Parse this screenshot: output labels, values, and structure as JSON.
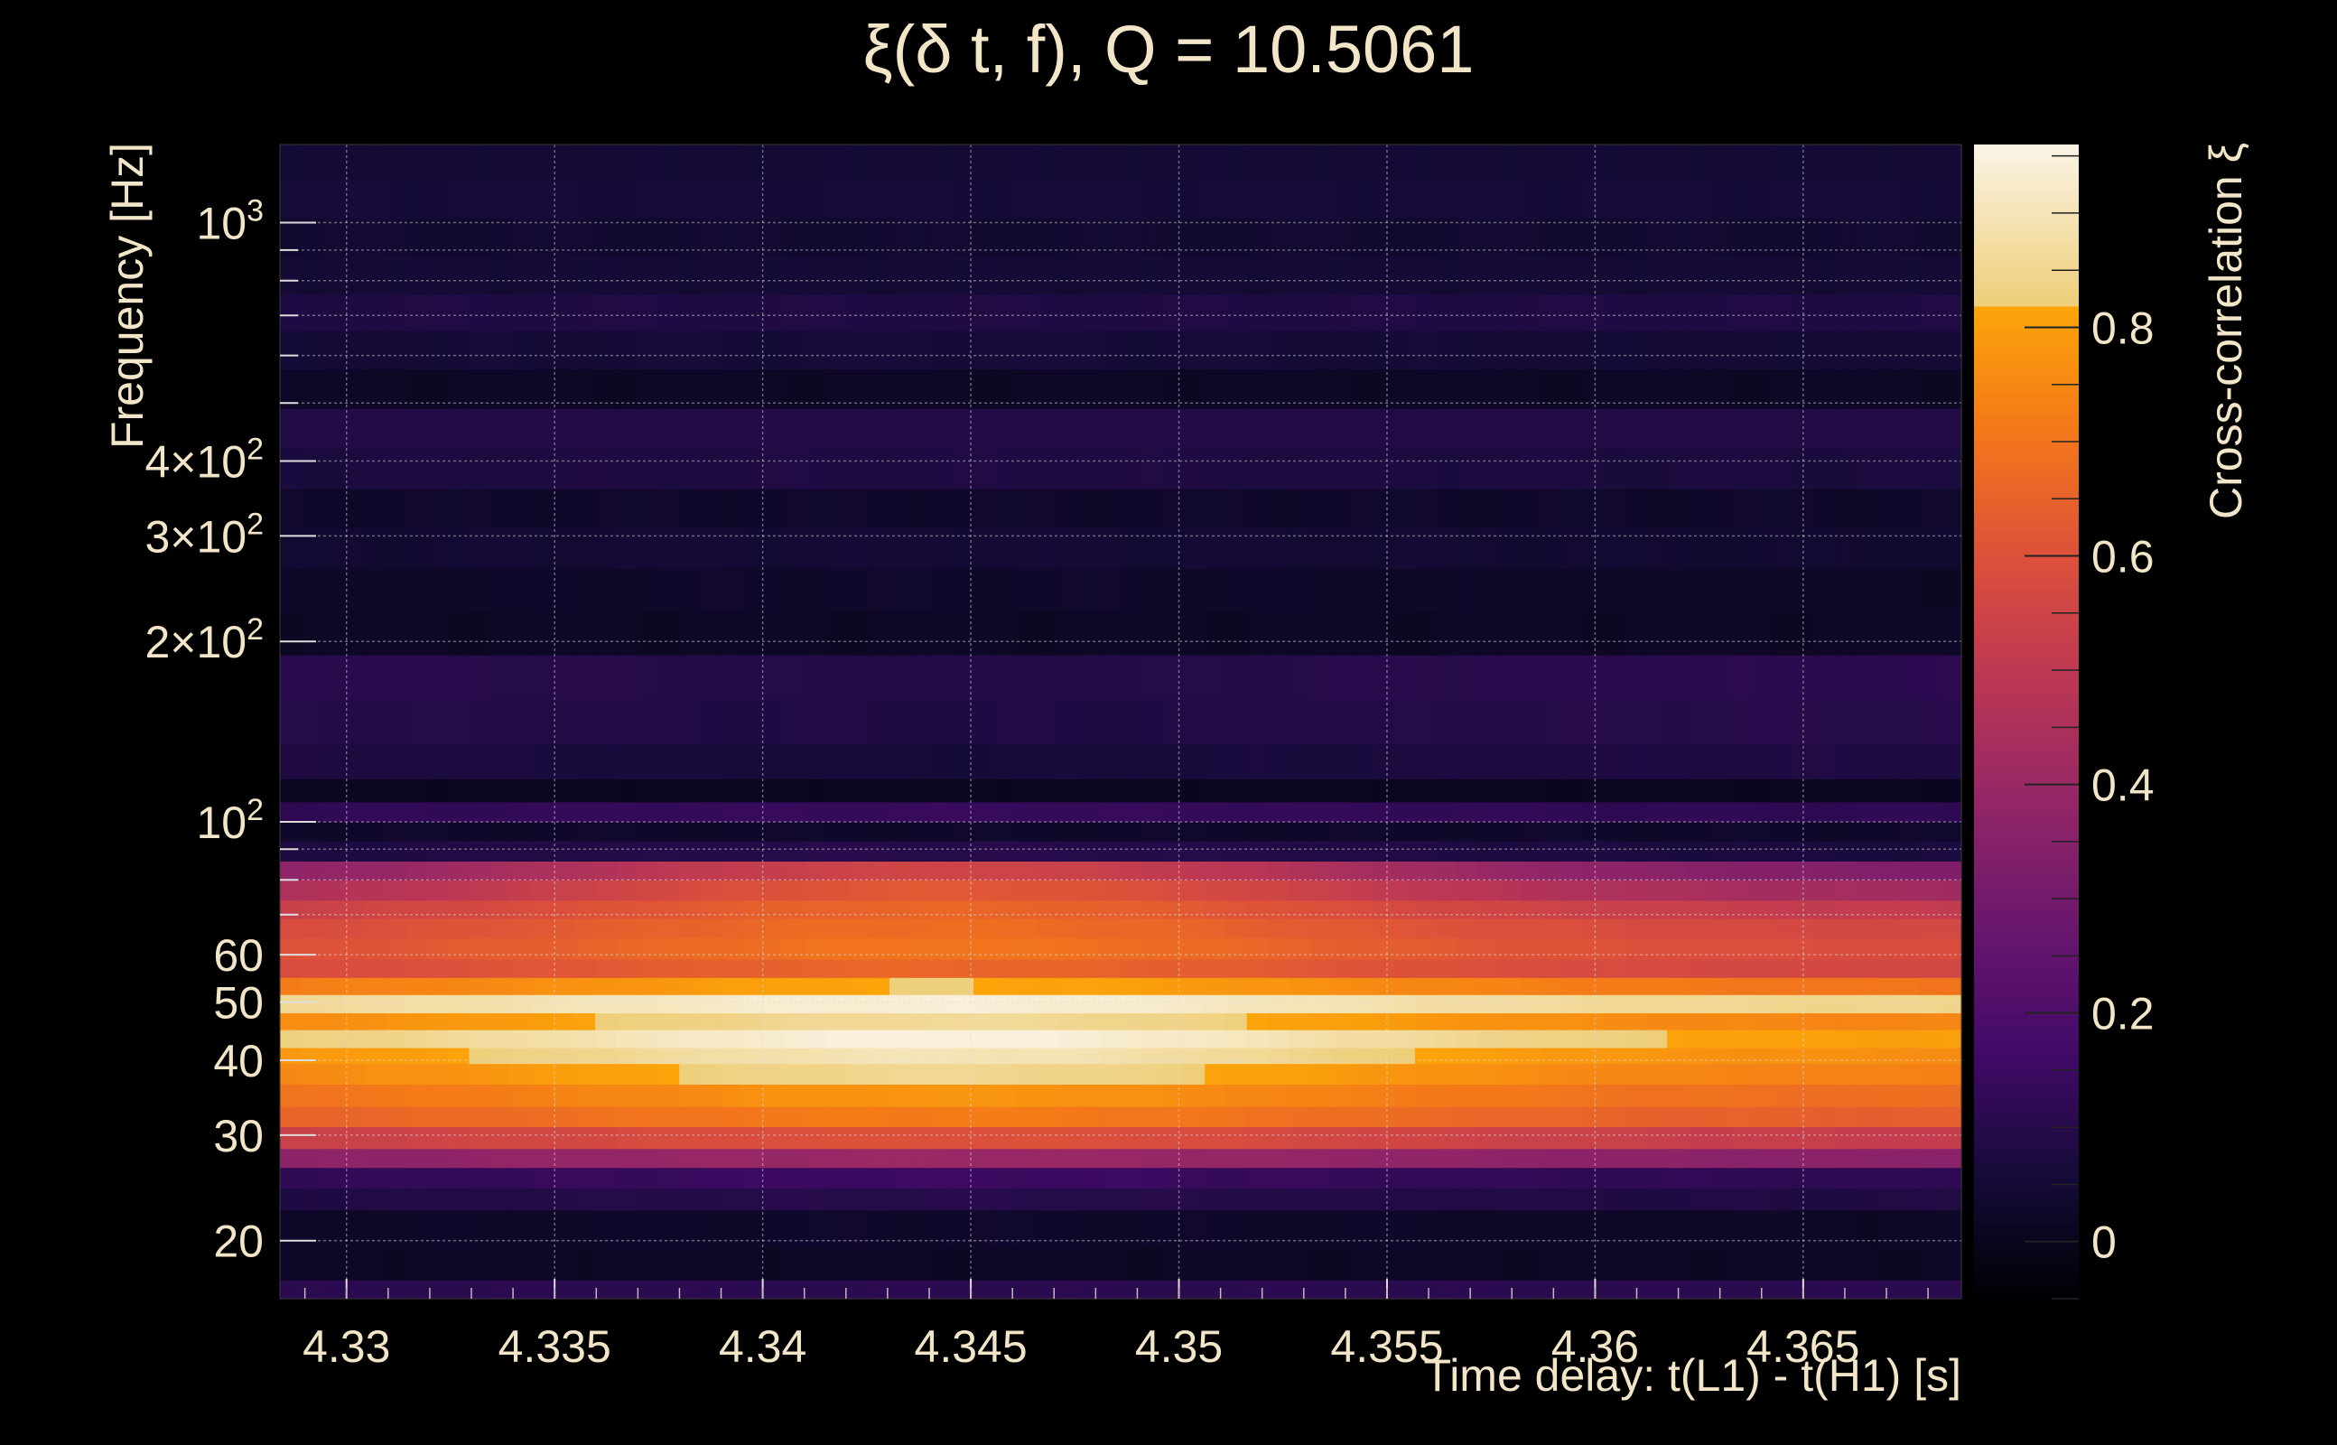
{
  "chart_data": {
    "type": "heatmap",
    "title": "ξ(δ t, f), Q = 10.5061",
    "xlabel": "Time delay: t(L1) - t(H1) [s]",
    "ylabel": "Frequency [Hz]",
    "colorbar_label": "Cross-correlation ξ",
    "x_scale": "linear",
    "y_scale": "log",
    "xlim": [
      4.3284,
      4.3688
    ],
    "ylim": [
      16,
      1350
    ],
    "clim": [
      -0.05,
      0.96
    ],
    "colormap": "inferno",
    "grid": true,
    "x_ticks": [
      {
        "value": 4.33,
        "label": "4.33"
      },
      {
        "value": 4.335,
        "label": "4.335"
      },
      {
        "value": 4.34,
        "label": "4.34"
      },
      {
        "value": 4.345,
        "label": "4.345"
      },
      {
        "value": 4.35,
        "label": "4.35"
      },
      {
        "value": 4.355,
        "label": "4.355"
      },
      {
        "value": 4.36,
        "label": "4.36"
      },
      {
        "value": 4.365,
        "label": "4.365"
      }
    ],
    "y_ticks": [
      {
        "value": 20,
        "label": "20"
      },
      {
        "value": 30,
        "label": "30"
      },
      {
        "value": 40,
        "label": "40"
      },
      {
        "value": 50,
        "label": "50"
      },
      {
        "value": 60,
        "label": "60"
      },
      {
        "value": 100,
        "label": "10",
        "sup": "2"
      },
      {
        "value": 200,
        "label": "2×10",
        "sup": "2"
      },
      {
        "value": 300,
        "label": "3×10",
        "sup": "2"
      },
      {
        "value": 400,
        "label": "4×10",
        "sup": "2"
      },
      {
        "value": 1000,
        "label": "10",
        "sup": "3"
      }
    ],
    "colorbar_ticks": [
      {
        "value": 0,
        "label": "0"
      },
      {
        "value": 0.2,
        "label": "0.2"
      },
      {
        "value": 0.4,
        "label": "0.4"
      },
      {
        "value": 0.6,
        "label": "0.6"
      },
      {
        "value": 0.8,
        "label": "0.8"
      }
    ],
    "peak": {
      "x": 4.3443,
      "f": 44
    },
    "rows": [
      {
        "f_low": 16,
        "f_high": 17.2,
        "value": 0.11,
        "tilt": 0.0
      },
      {
        "f_low": 17.2,
        "f_high": 19.5,
        "value": 0.02,
        "tilt": 0.0
      },
      {
        "f_low": 19.5,
        "f_high": 22.5,
        "value": 0.03,
        "tilt": 0.01
      },
      {
        "f_low": 22.5,
        "f_high": 24.5,
        "value": 0.1,
        "tilt": 0.02
      },
      {
        "f_low": 24.5,
        "f_high": 26.5,
        "value": 0.15,
        "tilt": 0.03
      },
      {
        "f_low": 26.5,
        "f_high": 28.5,
        "value": 0.4,
        "tilt": 0.04
      },
      {
        "f_low": 28.5,
        "f_high": 31.0,
        "value": 0.6,
        "tilt": 0.08
      },
      {
        "f_low": 31.0,
        "f_high": 33.5,
        "value": 0.72,
        "tilt": 0.08
      },
      {
        "f_low": 33.5,
        "f_high": 36.5,
        "value": 0.78,
        "tilt": 0.1
      },
      {
        "f_low": 36.5,
        "f_high": 39.5,
        "value": 0.85,
        "tilt": 0.12
      },
      {
        "f_low": 39.5,
        "f_high": 42.0,
        "value": 0.9,
        "tilt": 0.14
      },
      {
        "f_low": 42.0,
        "f_high": 45.0,
        "value": 0.95,
        "tilt": 0.15
      },
      {
        "f_low": 45.0,
        "f_high": 48.0,
        "value": 0.86,
        "tilt": 0.12
      },
      {
        "f_low": 48.0,
        "f_high": 51.5,
        "value": 0.94,
        "tilt": 0.1
      },
      {
        "f_low": 51.5,
        "f_high": 55.0,
        "value": 0.82,
        "tilt": 0.12
      },
      {
        "f_low": 55.0,
        "f_high": 59.0,
        "value": 0.66,
        "tilt": 0.1
      },
      {
        "f_low": 59.0,
        "f_high": 64.0,
        "value": 0.7,
        "tilt": 0.12
      },
      {
        "f_low": 64.0,
        "f_high": 69.0,
        "value": 0.68,
        "tilt": 0.12
      },
      {
        "f_low": 69.0,
        "f_high": 74.0,
        "value": 0.66,
        "tilt": 0.15
      },
      {
        "f_low": 74.0,
        "f_high": 80.0,
        "value": 0.62,
        "tilt": 0.2
      },
      {
        "f_low": 80.0,
        "f_high": 86.0,
        "value": 0.55,
        "tilt": 0.22
      },
      {
        "f_low": 86.0,
        "f_high": 93.0,
        "value": 0.1,
        "tilt": 0.03
      },
      {
        "f_low": 93.0,
        "f_high": 100.0,
        "value": 0.03,
        "tilt": 0.0
      },
      {
        "f_low": 100.0,
        "f_high": 108.0,
        "value": 0.14,
        "tilt": 0.02
      },
      {
        "f_low": 108.0,
        "f_high": 118.0,
        "value": 0.01,
        "tilt": 0.0
      },
      {
        "f_low": 118.0,
        "f_high": 135.0,
        "value": 0.06,
        "tilt": -0.02
      },
      {
        "f_low": 135.0,
        "f_high": 160.0,
        "value": 0.08,
        "tilt": -0.02
      },
      {
        "f_low": 160.0,
        "f_high": 190.0,
        "value": 0.09,
        "tilt": -0.02
      },
      {
        "f_low": 190.0,
        "f_high": 225.0,
        "value": 0.02,
        "tilt": 0.0
      },
      {
        "f_low": 225.0,
        "f_high": 265.0,
        "value": 0.03,
        "tilt": 0.01
      },
      {
        "f_low": 265.0,
        "f_high": 310.0,
        "value": 0.05,
        "tilt": 0.01
      },
      {
        "f_low": 310.0,
        "f_high": 360.0,
        "value": 0.03,
        "tilt": 0.0
      },
      {
        "f_low": 360.0,
        "f_high": 420.0,
        "value": 0.08,
        "tilt": 0.01
      },
      {
        "f_low": 420.0,
        "f_high": 490.0,
        "value": 0.09,
        "tilt": 0.0
      },
      {
        "f_low": 490.0,
        "f_high": 570.0,
        "value": 0.02,
        "tilt": 0.0
      },
      {
        "f_low": 570.0,
        "f_high": 660.0,
        "value": 0.06,
        "tilt": 0.01
      },
      {
        "f_low": 660.0,
        "f_high": 760.0,
        "value": 0.08,
        "tilt": 0.0
      },
      {
        "f_low": 760.0,
        "f_high": 880.0,
        "value": 0.05,
        "tilt": 0.0
      },
      {
        "f_low": 880.0,
        "f_high": 1020.0,
        "value": 0.04,
        "tilt": 0.0
      },
      {
        "f_low": 1020.0,
        "f_high": 1180.0,
        "value": 0.06,
        "tilt": 0.0
      },
      {
        "f_low": 1180.0,
        "f_high": 1350.0,
        "value": 0.05,
        "tilt": 0.0
      }
    ]
  }
}
